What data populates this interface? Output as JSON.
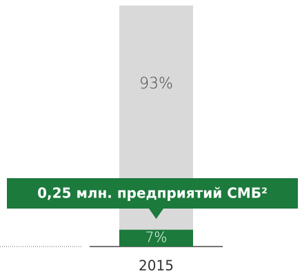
{
  "chart_data": {
    "type": "bar",
    "categories": [
      "2015"
    ],
    "series": [
      {
        "color": "#1b7a3c",
        "values": [
          7
        ],
        "value_labels": [
          "7%"
        ]
      },
      {
        "color": "#d9d9d9",
        "values": [
          93
        ],
        "value_labels": [
          "93%"
        ]
      }
    ],
    "ylim": [
      0,
      100
    ],
    "annotation": "0,25 млн. предприятий СМБ²",
    "annotation_color": "#1b7a3c"
  }
}
